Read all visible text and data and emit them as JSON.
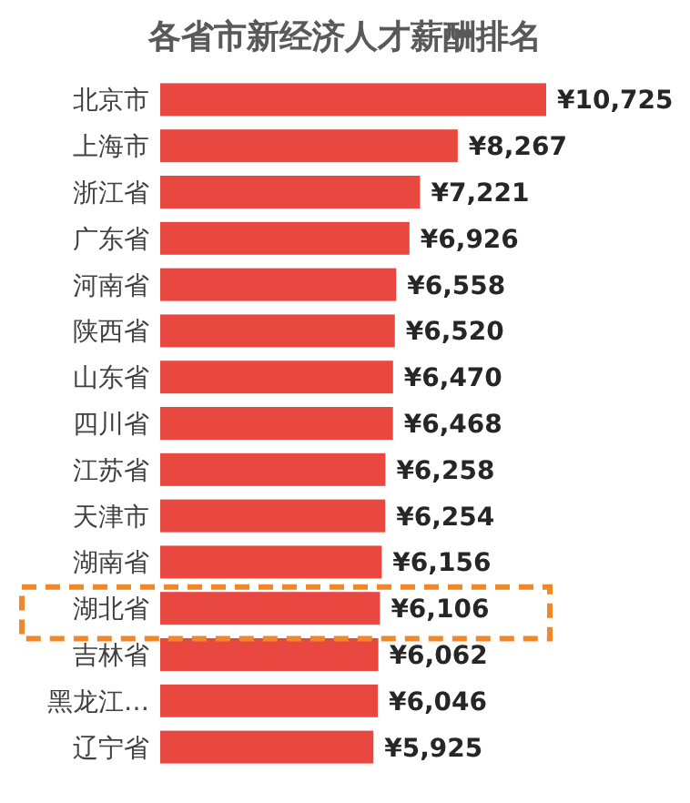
{
  "chart_data": {
    "type": "bar",
    "orientation": "horizontal",
    "title": "各省市新经济人才薪酬排名",
    "categories": [
      "北京市",
      "上海市",
      "浙江省",
      "广东省",
      "河南省",
      "陕西省",
      "山东省",
      "四川省",
      "江苏省",
      "天津市",
      "湖南省",
      "湖北省",
      "吉林省",
      "黑龙江…",
      "辽宁省"
    ],
    "values": [
      10725,
      8267,
      7221,
      6926,
      6558,
      6520,
      6470,
      6468,
      6258,
      6254,
      6156,
      6106,
      6062,
      6046,
      5925
    ],
    "value_labels": [
      "¥10,725",
      "¥8,267",
      "¥7,221",
      "¥6,926",
      "¥6,558",
      "¥6,520",
      "¥6,470",
      "¥6,468",
      "¥6,258",
      "¥6,254",
      "¥6,156",
      "¥6,106",
      "¥6,062",
      "¥6,046",
      "¥5,925"
    ],
    "color": "#e8483f"
  }
}
